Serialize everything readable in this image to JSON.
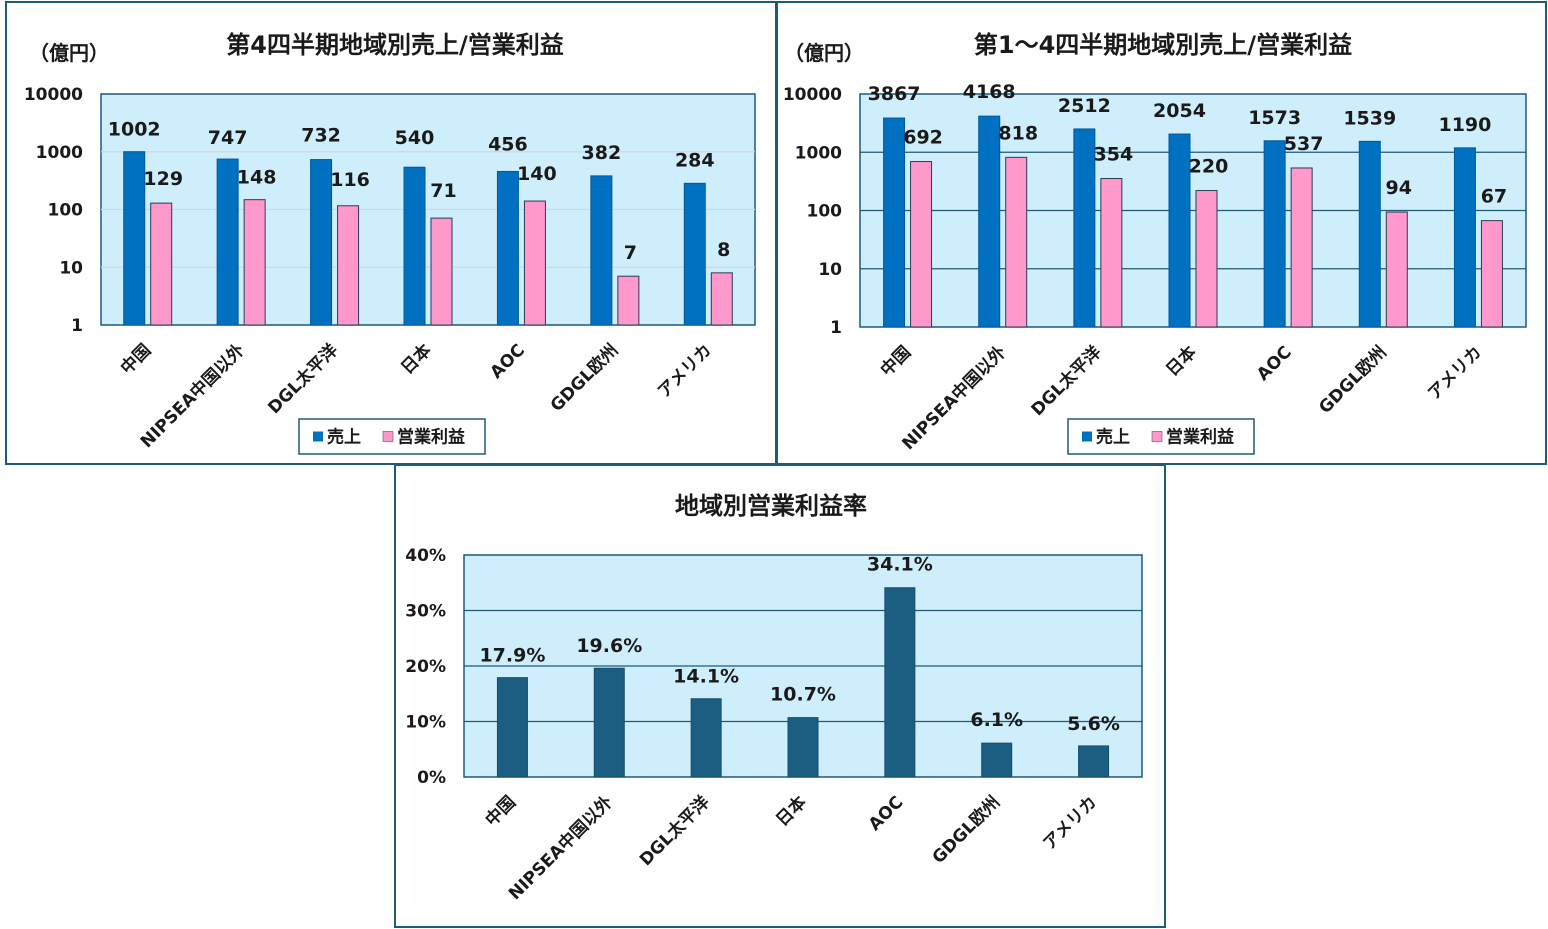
{
  "colors": {
    "sales": "#0070c0",
    "profit": "#ff99cc",
    "rate": "#1b5e82",
    "plot_bg": "#cfeefc",
    "grid": "#1f5a78"
  },
  "chart_data": [
    {
      "type": "bar",
      "title": "第4四半期地域別売上/営業利益",
      "unit_label": "（億円）",
      "yscale": "log",
      "ylim": [
        1,
        10000
      ],
      "yticks": [
        "1",
        "10",
        "100",
        "1000",
        "10000"
      ],
      "categories": [
        "中国",
        "NIPSEA中国以外",
        "DGL太平洋",
        "日本",
        "AOC",
        "GDGL欧州",
        "アメリカ"
      ],
      "series": [
        {
          "name": "売上",
          "values": [
            1002,
            747,
            732,
            540,
            456,
            382,
            284
          ],
          "labels": [
            "1002",
            "747",
            "732",
            "540",
            "456",
            "382",
            "284"
          ]
        },
        {
          "name": "営業利益",
          "values": [
            129,
            148,
            116,
            71,
            140,
            7,
            8
          ],
          "labels": [
            "129",
            "148",
            "116",
            "71",
            "140",
            "7",
            "8"
          ]
        }
      ],
      "legend": "bottom",
      "grid": true
    },
    {
      "type": "bar",
      "title": "第1～4四半期地域別売上/営業利益",
      "unit_label": "（億円）",
      "yscale": "log",
      "ylim": [
        1,
        10000
      ],
      "yticks": [
        "1",
        "10",
        "100",
        "1000",
        "10000"
      ],
      "categories": [
        "中国",
        "NIPSEA中国以外",
        "DGL太平洋",
        "日本",
        "AOC",
        "GDGL欧州",
        "アメリカ"
      ],
      "series": [
        {
          "name": "売上",
          "values": [
            3867,
            4168,
            2512,
            2054,
            1573,
            1539,
            1190
          ],
          "labels": [
            "3867",
            "4168",
            "2512",
            "2054",
            "1573",
            "1539",
            "1190"
          ]
        },
        {
          "name": "営業利益",
          "values": [
            692,
            818,
            354,
            220,
            537,
            94,
            67
          ],
          "labels": [
            "692",
            "818",
            "354",
            "220",
            "537",
            "94",
            "67"
          ]
        }
      ],
      "legend": "bottom",
      "grid": true
    },
    {
      "type": "bar",
      "title": "地域別営業利益率",
      "yscale": "linear",
      "ylim": [
        0,
        40
      ],
      "yticks": [
        "0%",
        "10%",
        "20%",
        "30%",
        "40%"
      ],
      "categories": [
        "中国",
        "NIPSEA中国以外",
        "DGL太平洋",
        "日本",
        "AOC",
        "GDGL欧州",
        "アメリカ"
      ],
      "series": [
        {
          "values": [
            17.9,
            19.6,
            14.1,
            10.7,
            34.1,
            6.1,
            5.6
          ],
          "labels": [
            "17.9%",
            "19.6%",
            "14.1%",
            "10.7%",
            "34.1%",
            "6.1%",
            "5.6%"
          ]
        }
      ],
      "grid": true
    }
  ]
}
